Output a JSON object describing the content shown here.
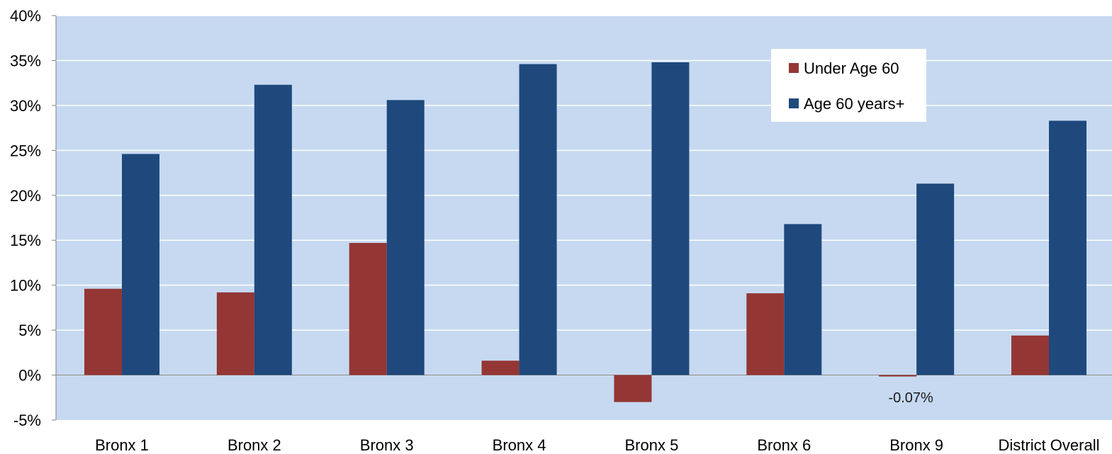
{
  "chart_data": {
    "type": "bar",
    "title": "",
    "xlabel": "",
    "ylabel": "",
    "categories": [
      "Bronx 1",
      "Bronx 2",
      "Bronx 3",
      "Bronx 4",
      "Bronx 5",
      "Bronx 6",
      "Bronx 9",
      "District Overall"
    ],
    "series": [
      {
        "name": "Under Age 60",
        "color": "#943634",
        "values": [
          9.6,
          9.2,
          14.7,
          1.6,
          -3.0,
          9.1,
          -0.07,
          4.4
        ]
      },
      {
        "name": "Age 60 years+",
        "color": "#1f497d",
        "values": [
          24.6,
          32.3,
          30.6,
          34.6,
          34.8,
          16.8,
          21.3,
          28.3
        ]
      }
    ],
    "ylim": [
      -5,
      40
    ],
    "ytick_values": [
      -5,
      0,
      5,
      10,
      15,
      20,
      25,
      30,
      35,
      40
    ],
    "ytick_labels": [
      "-5%",
      "0%",
      "5%",
      "10%",
      "15%",
      "20%",
      "25%",
      "30%",
      "35%",
      "40%"
    ],
    "annotations": [
      {
        "text": "-0.07%",
        "category": "Bronx 9",
        "series": "Under Age 60"
      }
    ],
    "legend_position": "top-right",
    "grid": true,
    "plot_background": "#c6d9f1",
    "gridline_color": "#ffffff"
  }
}
